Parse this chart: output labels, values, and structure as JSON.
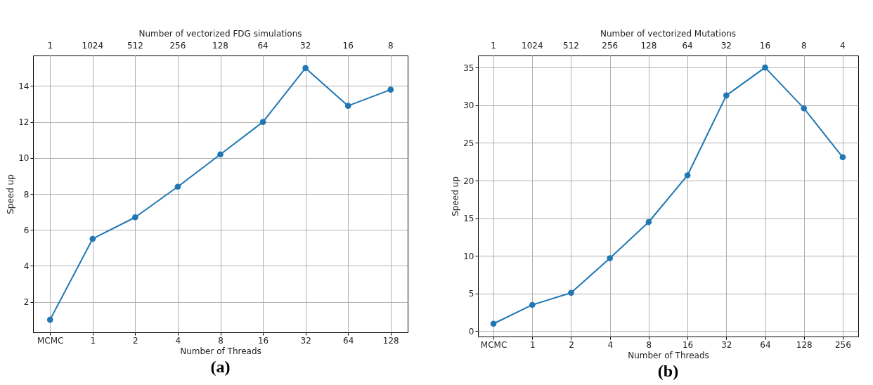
{
  "chart_data": [
    {
      "type": "line",
      "xlabel": "Number of Threads",
      "ylabel": "Speed up",
      "x2label": "Number of vectorized FDG simulations",
      "annotations": [
        "(a)",
        "1",
        "1024",
        "512",
        "256",
        "128",
        "64",
        "32",
        "16",
        "8"
      ],
      "categories": [
        "MCMC",
        "1",
        "2",
        "4",
        "8",
        "16",
        "32",
        "64",
        "128"
      ],
      "series": [
        {
          "color": "#1f77b4",
          "values": [
            1.0,
            5.5,
            6.7,
            8.4,
            10.2,
            12.0,
            15.0,
            12.9,
            13.8
          ]
        }
      ],
      "ylim": [
        0.3,
        15.7
      ],
      "yticks": [
        2,
        4,
        6,
        8,
        10,
        12,
        14
      ],
      "grid": true,
      "marker": "circle",
      "line_style": "solid"
    },
    {
      "type": "line",
      "xlabel": "Number of Threads",
      "ylabel": "Speed up",
      "x2label": "Number of vectorized Mutations",
      "annotations": [
        "(b)",
        "1",
        "1024",
        "512",
        "256",
        "128",
        "64",
        "32",
        "16",
        "8",
        "4"
      ],
      "categories": [
        "MCMC",
        "1",
        "2",
        "4",
        "8",
        "16",
        "32",
        "64",
        "128",
        "256"
      ],
      "series": [
        {
          "color": "#1f77b4",
          "values": [
            1.0,
            3.5,
            5.1,
            9.7,
            14.5,
            20.7,
            31.3,
            35.0,
            29.6,
            23.1
          ]
        }
      ],
      "ylim": [
        -0.7,
        36.6
      ],
      "yticks": [
        0,
        5,
        10,
        15,
        20,
        25,
        30,
        35
      ],
      "grid": true,
      "marker": "circle",
      "line_style": "solid"
    }
  ]
}
